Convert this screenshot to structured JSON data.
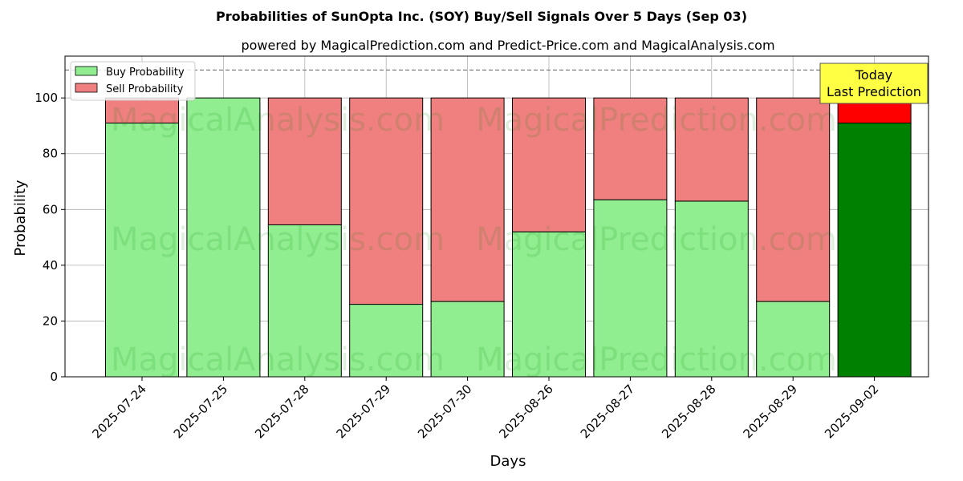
{
  "chart_data": {
    "type": "bar",
    "stacked": true,
    "title": "Probabilities of SunOpta Inc. (SOY) Buy/Sell Signals Over 5 Days (Sep 03)",
    "subtitle": "powered by MagicalPrediction.com and Predict-Price.com and MagicalAnalysis.com",
    "xlabel": "Days",
    "ylabel": "Probability",
    "ylim": [
      0,
      115
    ],
    "yticks": [
      0,
      20,
      40,
      60,
      80,
      100
    ],
    "reference_line": 110,
    "categories": [
      "2025-07-24",
      "2025-07-25",
      "2025-07-28",
      "2025-07-29",
      "2025-07-30",
      "2025-08-26",
      "2025-08-27",
      "2025-08-28",
      "2025-08-29",
      "2025-09-02"
    ],
    "series": [
      {
        "name": "Buy Probability",
        "values": [
          91,
          100,
          54.5,
          26,
          27,
          52,
          63.5,
          63,
          27,
          91
        ]
      },
      {
        "name": "Sell Probability",
        "values": [
          9,
          0,
          45.5,
          74,
          73,
          48,
          36.5,
          37,
          73,
          9
        ]
      }
    ],
    "colors": {
      "buy": "#90ee90",
      "sell": "#f08080",
      "buy_highlight": "#008000",
      "sell_highlight": "#ff0000",
      "annotation_bg": "#ffff44"
    },
    "highlight_index": 9,
    "annotation": {
      "line1": "Today",
      "line2": "Last Prediction"
    },
    "legend_position": "top-left",
    "grid": true,
    "watermarks": [
      "MagicalAnalysis.com",
      "MagicalPrediction.com",
      "MagicalAnalysis.com",
      "MagicalPrediction.com",
      "MagicalAnalysis.com",
      "MagicalPrediction.com"
    ]
  }
}
